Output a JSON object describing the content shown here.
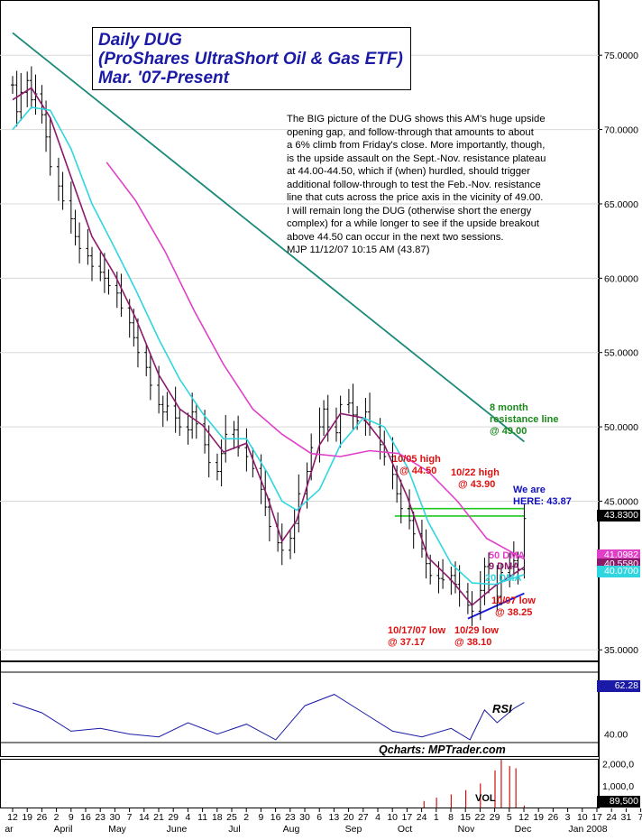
{
  "title": {
    "line1": "Daily DUG",
    "line2": "(ProShares UltraShort Oil & Gas ETF)",
    "line3": "Mar. '07-Present"
  },
  "commentary": [
    "The BIG picture of the DUG shows this AM's huge upside",
    "opening gap, and follow-through that amounts to about",
    "a 6% climb from Friday's close. More importantly, though,",
    "is the upside assault on the Sept.-Nov. resistance plateau",
    "at 44.00-44.50, which if (when) hurdled, should trigger",
    "additional follow-through to test the Feb.-Nov. resistance",
    "line that cuts across the price axis in the vicinity of 49.00.",
    "I will remain long the DUG (otherwise short the energy",
    "complex) for a while longer to see if the upside breakout",
    "above 44.50 can occur in the next two sessions.",
    "MJP  11/12/07  10:15 AM  (43.87)"
  ],
  "annotations": {
    "resistance": [
      "8 month",
      "resistance line",
      "@ 49.00"
    ],
    "high_1005": [
      "10/05 high",
      "@ 44.50"
    ],
    "high_1022": [
      "10/22 high",
      "@ 43.90"
    ],
    "we_are": [
      "We are",
      "HERE: 43.87"
    ],
    "dma50": "50 DMA",
    "dma9": "9 DMA",
    "dma20": "20 DMA",
    "low_1007": [
      "10/07 low",
      "@ 38.25"
    ],
    "low_1017": [
      "10/17/07 low",
      "@ 37.17"
    ],
    "low_1029": [
      "10/29 low",
      "@ 38.10"
    ]
  },
  "price_tags": {
    "last": "43.8300",
    "dma50": "41.0982",
    "dma9": "40.5580",
    "dma20": "40.0700",
    "rsi": "62.28",
    "vol_last": "89,500"
  },
  "labels": {
    "rsi": "RSI",
    "source": "Qcharts: MPTrader.com",
    "vol": "VOL"
  },
  "colors": {
    "title": "#1a1aa6",
    "price_bars": "#000000",
    "ma9": "#8b1a6b",
    "ma20": "#2fd6e0",
    "ma50": "#e040c8",
    "trendline": "#1a8a7a",
    "support_line": "#1a1ad8",
    "resistance_zone": "#1ec81e",
    "annotation_red": "#e01010",
    "annotation_green": "#1a8a1a",
    "annotation_blue": "#1010c0",
    "rsi_line": "#1a1aa6",
    "volume": "#d01010"
  },
  "chart_data": {
    "type": "line",
    "price_axis": {
      "ticks": [
        "75.0000",
        "70.0000",
        "65.0000",
        "60.0000",
        "55.0000",
        "50.0000",
        "45.0000",
        "35.0000"
      ],
      "ylim": [
        33.8,
        77.5
      ]
    },
    "rsi_axis": {
      "ticks": [
        "40.00"
      ],
      "ylim": [
        20,
        90
      ],
      "last": 62.28
    },
    "volume_axis": {
      "ticks": [
        "2,000,0",
        "1,000,0"
      ],
      "ylim": [
        0,
        2400000
      ]
    },
    "x_tick_labels": [
      "12",
      "19",
      "26",
      "2",
      "9",
      "16",
      "23",
      "30",
      "7",
      "14",
      "21",
      "29",
      "4",
      "11",
      "18",
      "25",
      "2",
      "9",
      "16",
      "23",
      "30",
      "6",
      "13",
      "20",
      "27",
      "4",
      "10",
      "17",
      "24",
      "1",
      "8",
      "15",
      "22",
      "29",
      "5",
      "12",
      "19",
      "26",
      "3",
      "10",
      "17",
      "24",
      "31",
      "7"
    ],
    "month_labels": [
      "ar",
      "April",
      "May",
      "June",
      "Jul",
      "Aug",
      "Sep",
      "Oct",
      "Nov",
      "Dec",
      "Jan 2008"
    ],
    "series": [
      {
        "name": "Daily close",
        "values": [
          {
            "x": "2007-03-12",
            "y": 73.0
          },
          {
            "x": "2007-03-14",
            "y": 71.2
          },
          {
            "x": "2007-03-16",
            "y": 72.5
          },
          {
            "x": "2007-03-19",
            "y": 73.3
          },
          {
            "x": "2007-03-21",
            "y": 72.0
          },
          {
            "x": "2007-03-23",
            "y": 72.4
          },
          {
            "x": "2007-03-26",
            "y": 71.0
          },
          {
            "x": "2007-03-28",
            "y": 69.5
          },
          {
            "x": "2007-03-30",
            "y": 67.5
          },
          {
            "x": "2007-04-03",
            "y": 66.2
          },
          {
            "x": "2007-04-05",
            "y": 65.2
          },
          {
            "x": "2007-04-09",
            "y": 64.0
          },
          {
            "x": "2007-04-11",
            "y": 62.8
          },
          {
            "x": "2007-04-13",
            "y": 62.0
          },
          {
            "x": "2007-04-17",
            "y": 61.5
          },
          {
            "x": "2007-04-19",
            "y": 60.8
          },
          {
            "x": "2007-04-23",
            "y": 60.4
          },
          {
            "x": "2007-04-25",
            "y": 60.0
          },
          {
            "x": "2007-04-27",
            "y": 59.5
          },
          {
            "x": "2007-05-01",
            "y": 59.0
          },
          {
            "x": "2007-05-03",
            "y": 58.0
          },
          {
            "x": "2007-05-07",
            "y": 57.0
          },
          {
            "x": "2007-05-09",
            "y": 56.0
          },
          {
            "x": "2007-05-11",
            "y": 55.0
          },
          {
            "x": "2007-05-15",
            "y": 54.0
          },
          {
            "x": "2007-05-17",
            "y": 52.8
          },
          {
            "x": "2007-05-21",
            "y": 51.5
          },
          {
            "x": "2007-05-23",
            "y": 51.0
          },
          {
            "x": "2007-05-25",
            "y": 51.4
          },
          {
            "x": "2007-05-29",
            "y": 50.6
          },
          {
            "x": "2007-05-31",
            "y": 50.0
          },
          {
            "x": "2007-06-04",
            "y": 49.8
          },
          {
            "x": "2007-06-06",
            "y": 51.0
          },
          {
            "x": "2007-06-08",
            "y": 50.2
          },
          {
            "x": "2007-06-12",
            "y": 48.8
          },
          {
            "x": "2007-06-14",
            "y": 47.6
          },
          {
            "x": "2007-06-18",
            "y": 47.0
          },
          {
            "x": "2007-06-20",
            "y": 48.2
          },
          {
            "x": "2007-06-22",
            "y": 49.5
          },
          {
            "x": "2007-06-26",
            "y": 49.8
          },
          {
            "x": "2007-06-28",
            "y": 48.6
          },
          {
            "x": "2007-07-02",
            "y": 48.0
          },
          {
            "x": "2007-07-05",
            "y": 47.2
          },
          {
            "x": "2007-07-09",
            "y": 45.8
          },
          {
            "x": "2007-07-11",
            "y": 44.6
          },
          {
            "x": "2007-07-13",
            "y": 43.3
          },
          {
            "x": "2007-07-17",
            "y": 42.2
          },
          {
            "x": "2007-07-19",
            "y": 41.7
          },
          {
            "x": "2007-07-23",
            "y": 42.5
          },
          {
            "x": "2007-07-25",
            "y": 43.5
          },
          {
            "x": "2007-07-27",
            "y": 45.5
          },
          {
            "x": "2007-07-31",
            "y": 47.0
          },
          {
            "x": "2007-08-02",
            "y": 48.6
          },
          {
            "x": "2007-08-06",
            "y": 50.0
          },
          {
            "x": "2007-08-08",
            "y": 51.2
          },
          {
            "x": "2007-08-10",
            "y": 50.0
          },
          {
            "x": "2007-08-14",
            "y": 49.6
          },
          {
            "x": "2007-08-16",
            "y": 51.5
          },
          {
            "x": "2007-08-20",
            "y": 51.6
          },
          {
            "x": "2007-08-22",
            "y": 50.8
          },
          {
            "x": "2007-08-24",
            "y": 50.4
          },
          {
            "x": "2007-08-28",
            "y": 51.0
          },
          {
            "x": "2007-08-30",
            "y": 50.0
          },
          {
            "x": "2007-09-04",
            "y": 48.8
          },
          {
            "x": "2007-09-06",
            "y": 48.0
          },
          {
            "x": "2007-09-10",
            "y": 46.8
          },
          {
            "x": "2007-09-12",
            "y": 45.5
          },
          {
            "x": "2007-09-14",
            "y": 44.5
          },
          {
            "x": "2007-09-18",
            "y": 43.7
          },
          {
            "x": "2007-09-20",
            "y": 42.8
          },
          {
            "x": "2007-09-24",
            "y": 41.8
          },
          {
            "x": "2007-09-26",
            "y": 40.8
          },
          {
            "x": "2007-09-28",
            "y": 40.0
          },
          {
            "x": "2007-10-02",
            "y": 39.8
          },
          {
            "x": "2007-10-04",
            "y": 39.7
          },
          {
            "x": "2007-10-08",
            "y": 40.0
          },
          {
            "x": "2007-10-10",
            "y": 39.4
          },
          {
            "x": "2007-10-12",
            "y": 38.9
          },
          {
            "x": "2007-10-16",
            "y": 38.0
          },
          {
            "x": "2007-10-18",
            "y": 37.6
          },
          {
            "x": "2007-10-22",
            "y": 39.0
          },
          {
            "x": "2007-10-24",
            "y": 40.6
          },
          {
            "x": "2007-10-26",
            "y": 39.4
          },
          {
            "x": "2007-10-30",
            "y": 38.6
          },
          {
            "x": "2007-11-01",
            "y": 40.2
          },
          {
            "x": "2007-11-05",
            "y": 40.6
          },
          {
            "x": "2007-11-07",
            "y": 41.0
          },
          {
            "x": "2007-11-09",
            "y": 40.4
          },
          {
            "x": "2007-11-12",
            "y": 43.83
          }
        ]
      },
      {
        "name": "9 DMA",
        "values": [
          {
            "x": "2007-03-12",
            "y": 72.0
          },
          {
            "x": "2007-03-21",
            "y": 72.8
          },
          {
            "x": "2007-03-30",
            "y": 70.8
          },
          {
            "x": "2007-04-09",
            "y": 66.8
          },
          {
            "x": "2007-04-19",
            "y": 62.8
          },
          {
            "x": "2007-04-30",
            "y": 60.2
          },
          {
            "x": "2007-05-10",
            "y": 57.3
          },
          {
            "x": "2007-05-21",
            "y": 53.5
          },
          {
            "x": "2007-05-31",
            "y": 51.2
          },
          {
            "x": "2007-06-11",
            "y": 50.1
          },
          {
            "x": "2007-06-21",
            "y": 48.3
          },
          {
            "x": "2007-07-02",
            "y": 48.9
          },
          {
            "x": "2007-07-12",
            "y": 45.3
          },
          {
            "x": "2007-07-19",
            "y": 42.3
          },
          {
            "x": "2007-07-26",
            "y": 43.7
          },
          {
            "x": "2007-08-06",
            "y": 48.8
          },
          {
            "x": "2007-08-16",
            "y": 50.9
          },
          {
            "x": "2007-08-27",
            "y": 50.6
          },
          {
            "x": "2007-09-06",
            "y": 48.8
          },
          {
            "x": "2007-09-17",
            "y": 45.3
          },
          {
            "x": "2007-09-27",
            "y": 41.2
          },
          {
            "x": "2007-10-08",
            "y": 39.7
          },
          {
            "x": "2007-10-18",
            "y": 38.0
          },
          {
            "x": "2007-10-29",
            "y": 39.3
          },
          {
            "x": "2007-11-12",
            "y": 40.56
          }
        ]
      },
      {
        "name": "20 DMA",
        "values": [
          {
            "x": "2007-03-12",
            "y": 70.0
          },
          {
            "x": "2007-03-21",
            "y": 71.5
          },
          {
            "x": "2007-03-30",
            "y": 71.3
          },
          {
            "x": "2007-04-09",
            "y": 68.7
          },
          {
            "x": "2007-04-19",
            "y": 65.0
          },
          {
            "x": "2007-04-30",
            "y": 62.0
          },
          {
            "x": "2007-05-10",
            "y": 59.2
          },
          {
            "x": "2007-05-21",
            "y": 55.9
          },
          {
            "x": "2007-05-31",
            "y": 53.2
          },
          {
            "x": "2007-06-11",
            "y": 50.9
          },
          {
            "x": "2007-06-21",
            "y": 49.2
          },
          {
            "x": "2007-07-02",
            "y": 49.2
          },
          {
            "x": "2007-07-12",
            "y": 46.9
          },
          {
            "x": "2007-07-19",
            "y": 45.0
          },
          {
            "x": "2007-07-26",
            "y": 44.4
          },
          {
            "x": "2007-08-06",
            "y": 45.8
          },
          {
            "x": "2007-08-16",
            "y": 48.8
          },
          {
            "x": "2007-08-27",
            "y": 50.6
          },
          {
            "x": "2007-09-06",
            "y": 50.0
          },
          {
            "x": "2007-09-17",
            "y": 47.3
          },
          {
            "x": "2007-09-27",
            "y": 43.6
          },
          {
            "x": "2007-10-08",
            "y": 40.8
          },
          {
            "x": "2007-10-18",
            "y": 39.5
          },
          {
            "x": "2007-10-29",
            "y": 39.4
          },
          {
            "x": "2007-11-12",
            "y": 40.07
          }
        ]
      },
      {
        "name": "50 DMA",
        "values": [
          {
            "x": "2007-04-26",
            "y": 67.8
          },
          {
            "x": "2007-05-10",
            "y": 65.2
          },
          {
            "x": "2007-05-24",
            "y": 61.8
          },
          {
            "x": "2007-06-07",
            "y": 57.8
          },
          {
            "x": "2007-06-21",
            "y": 54.2
          },
          {
            "x": "2007-07-05",
            "y": 51.2
          },
          {
            "x": "2007-07-19",
            "y": 49.5
          },
          {
            "x": "2007-08-02",
            "y": 48.2
          },
          {
            "x": "2007-08-16",
            "y": 48.0
          },
          {
            "x": "2007-08-30",
            "y": 48.4
          },
          {
            "x": "2007-09-13",
            "y": 48.2
          },
          {
            "x": "2007-09-27",
            "y": 47.0
          },
          {
            "x": "2007-10-11",
            "y": 45.0
          },
          {
            "x": "2007-10-25",
            "y": 42.5
          },
          {
            "x": "2007-11-12",
            "y": 41.1
          }
        ]
      }
    ],
    "trendlines": [
      {
        "name": "8 month resistance line",
        "start": {
          "x": "2007-03-12",
          "y": 76.5
        },
        "end": {
          "x": "2007-11-12",
          "y": 49.0
        }
      },
      {
        "name": "support",
        "start": {
          "x": "2007-10-16",
          "y": 37.1
        },
        "end": {
          "x": "2007-11-12",
          "y": 38.8
        }
      },
      {
        "name": "resistance zone upper",
        "start": {
          "x": "2007-09-17",
          "y": 44.5
        },
        "end": {
          "x": "2007-11-12",
          "y": 44.5
        }
      },
      {
        "name": "resistance zone lower",
        "start": {
          "x": "2007-09-11",
          "y": 44.0
        },
        "end": {
          "x": "2007-11-12",
          "y": 44.0
        }
      }
    ],
    "rsi": [
      {
        "x": "2007-03-12",
        "y": 62
      },
      {
        "x": "2007-03-26",
        "y": 55
      },
      {
        "x": "2007-04-09",
        "y": 42
      },
      {
        "x": "2007-04-23",
        "y": 44
      },
      {
        "x": "2007-05-07",
        "y": 40
      },
      {
        "x": "2007-05-21",
        "y": 38
      },
      {
        "x": "2007-06-04",
        "y": 48
      },
      {
        "x": "2007-06-18",
        "y": 40
      },
      {
        "x": "2007-07-02",
        "y": 47
      },
      {
        "x": "2007-07-16",
        "y": 36
      },
      {
        "x": "2007-07-30",
        "y": 60
      },
      {
        "x": "2007-08-13",
        "y": 68
      },
      {
        "x": "2007-08-27",
        "y": 55
      },
      {
        "x": "2007-09-10",
        "y": 42
      },
      {
        "x": "2007-09-24",
        "y": 38
      },
      {
        "x": "2007-10-08",
        "y": 44
      },
      {
        "x": "2007-10-17",
        "y": 36
      },
      {
        "x": "2007-10-24",
        "y": 57
      },
      {
        "x": "2007-10-30",
        "y": 48
      },
      {
        "x": "2007-11-07",
        "y": 58
      },
      {
        "x": "2007-11-12",
        "y": 62.28
      }
    ],
    "volume": [
      {
        "x": "2007-09-25",
        "y": 300000
      },
      {
        "x": "2007-10-01",
        "y": 450000
      },
      {
        "x": "2007-10-08",
        "y": 600000
      },
      {
        "x": "2007-10-15",
        "y": 800000
      },
      {
        "x": "2007-10-22",
        "y": 1100000
      },
      {
        "x": "2007-10-29",
        "y": 1700000
      },
      {
        "x": "2007-11-01",
        "y": 2200000
      },
      {
        "x": "2007-11-05",
        "y": 1900000
      },
      {
        "x": "2007-11-08",
        "y": 1800000
      },
      {
        "x": "2007-11-12",
        "y": 89500
      }
    ]
  }
}
